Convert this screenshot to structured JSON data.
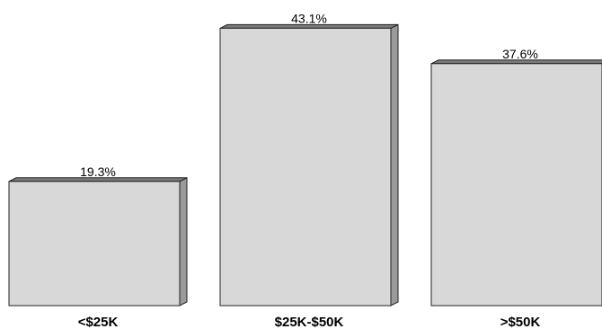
{
  "chart_data": {
    "type": "bar",
    "categories": [
      "<$25K",
      "$25K-$50K",
      ">$50K"
    ],
    "values": [
      19.3,
      43.1,
      37.6
    ],
    "data_labels": [
      "19.3%",
      "43.1%",
      "37.6%"
    ],
    "title": "",
    "xlabel": "",
    "ylabel": "",
    "ylim": [
      0,
      50
    ],
    "grid": false,
    "legend": "none",
    "style": "3d-bars",
    "colors": {
      "front": "#d8d8d8",
      "top": "#7a7a7a",
      "side": "#9a9a9a",
      "outline": "#222222"
    }
  }
}
